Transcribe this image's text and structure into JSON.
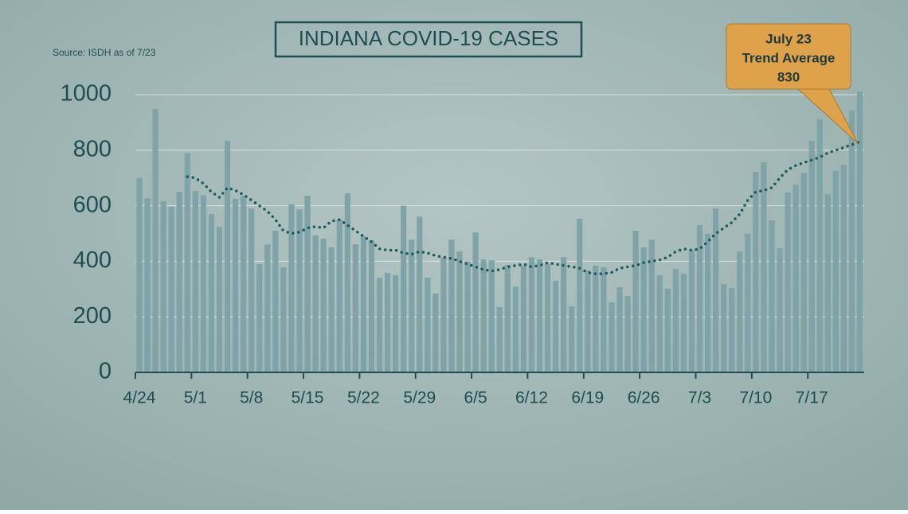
{
  "chart_data": {
    "type": "bar",
    "title": "INDIANA COVID-19 CASES",
    "subtitle": "Source: ISDH as of 7/23",
    "annotation": [
      "July 23",
      "Trend Average",
      "830"
    ],
    "categories": [
      "4/24",
      null,
      null,
      null,
      null,
      null,
      null,
      "5/1",
      null,
      null,
      null,
      null,
      null,
      null,
      "5/8",
      null,
      null,
      null,
      null,
      null,
      null,
      "5/15",
      null,
      null,
      null,
      null,
      null,
      null,
      "5/22",
      null,
      null,
      null,
      null,
      null,
      null,
      "5/29",
      null,
      null,
      null,
      null,
      null,
      null,
      "6/5",
      null,
      null,
      null,
      null,
      null,
      null,
      "6/12",
      null,
      null,
      null,
      null,
      null,
      null,
      "6/19",
      null,
      null,
      null,
      null,
      null,
      null,
      "6/26",
      null,
      null,
      null,
      null,
      null,
      null,
      "7/3",
      null,
      null,
      null,
      null,
      null,
      null,
      "7/10",
      null,
      null,
      null,
      null,
      null,
      null,
      "7/17",
      null,
      null,
      null,
      null,
      null,
      null
    ],
    "series": [
      {
        "type": "bar",
        "color": "#7fa3a6",
        "values": [
          700,
          627,
          948,
          616,
          596,
          650,
          790,
          653,
          638,
          570,
          524,
          834,
          625,
          636,
          590,
          390,
          461,
          510,
          378,
          605,
          587,
          636,
          493,
          481,
          450,
          550,
          645,
          461,
          490,
          476,
          341,
          358,
          350,
          600,
          478,
          561,
          341,
          284,
          413,
          478,
          436,
          400,
          504,
          407,
          404,
          235,
          387,
          309,
          384,
          415,
          407,
          390,
          330,
          415,
          238,
          553,
          367,
          384,
          378,
          252,
          307,
          275,
          510,
          450,
          478,
          350,
          301,
          372,
          355,
          441,
          530,
          499,
          590,
          318,
          304,
          436,
          499,
          722,
          756,
          547,
          447,
          648,
          676,
          719,
          834,
          911,
          642,
          725,
          748,
          943,
          1011
        ]
      },
      {
        "type": "line",
        "color": "#1d5a5c",
        "values": [
          null,
          null,
          null,
          null,
          null,
          null,
          705,
          700,
          680,
          650,
          630,
          665,
          655,
          640,
          620,
          600,
          580,
          550,
          510,
          500,
          505,
          520,
          525,
          520,
          545,
          550,
          530,
          510,
          490,
          470,
          445,
          440,
          440,
          430,
          425,
          435,
          430,
          420,
          415,
          410,
          400,
          390,
          380,
          370,
          365,
          370,
          380,
          385,
          390,
          380,
          385,
          395,
          390,
          385,
          380,
          375,
          360,
          355,
          355,
          360,
          375,
          380,
          385,
          395,
          400,
          405,
          415,
          435,
          445,
          440,
          445,
          470,
          500,
          520,
          540,
          570,
          620,
          650,
          655,
          665,
          700,
          730,
          745,
          755,
          765,
          775,
          790,
          800,
          810,
          820,
          830
        ]
      }
    ],
    "ylim": [
      0,
      1000
    ],
    "yticks": [
      0,
      200,
      400,
      600,
      800,
      1000
    ],
    "grid": true
  }
}
